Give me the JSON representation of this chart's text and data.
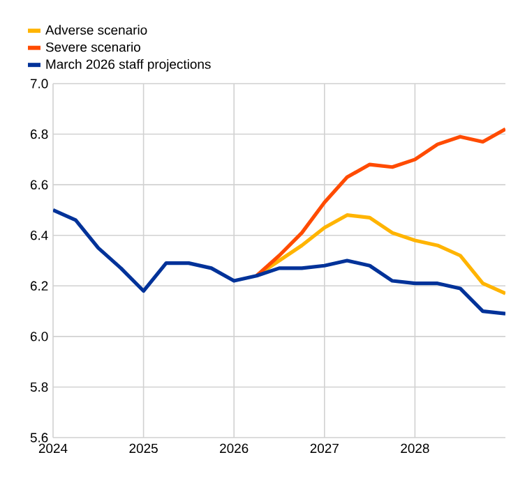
{
  "chart_data": {
    "type": "line",
    "legend": "top left",
    "grid": true,
    "xlim": [
      2024,
      2029
    ],
    "xticks": [
      2024,
      2025,
      2026,
      2027,
      2028
    ],
    "ylim": [
      5.6,
      7.0
    ],
    "yticks": [
      {
        "value": 5.6,
        "label": "5.6"
      },
      {
        "value": 5.8,
        "label": "5.8"
      },
      {
        "value": 6.0,
        "label": "6.0"
      },
      {
        "value": 6.2,
        "label": "6.2"
      },
      {
        "value": 6.4,
        "label": "6.4"
      },
      {
        "value": 6.6,
        "label": "6.6"
      },
      {
        "value": 6.8,
        "label": "6.8"
      },
      {
        "value": 7.0,
        "label": "7.0"
      }
    ],
    "series": [
      {
        "name": "Adverse scenario",
        "color": "#ffb400",
        "x": [
          2026.25,
          2026.5,
          2026.75,
          2027,
          2027.25,
          2027.5,
          2027.75,
          2028,
          2028.25,
          2028.5,
          2028.75,
          2029
        ],
        "values": [
          6.24,
          6.3,
          6.36,
          6.43,
          6.48,
          6.47,
          6.41,
          6.38,
          6.36,
          6.32,
          6.21,
          6.17
        ]
      },
      {
        "name": "Severe scenario",
        "color": "#ff4b00",
        "x": [
          2026.25,
          2026.5,
          2026.75,
          2027,
          2027.25,
          2027.5,
          2027.75,
          2028,
          2028.25,
          2028.5,
          2028.75,
          2029
        ],
        "values": [
          6.24,
          6.32,
          6.41,
          6.53,
          6.63,
          6.68,
          6.67,
          6.7,
          6.76,
          6.79,
          6.77,
          6.82
        ]
      },
      {
        "name": "March 2026 staff projections",
        "color": "#003299",
        "x": [
          2024,
          2024.25,
          2024.5,
          2024.75,
          2025,
          2025.25,
          2025.5,
          2025.75,
          2026,
          2026.25,
          2026.5,
          2026.75,
          2027,
          2027.25,
          2027.5,
          2027.75,
          2028,
          2028.25,
          2028.5,
          2028.75,
          2029
        ],
        "values": [
          6.5,
          6.46,
          6.35,
          6.27,
          6.18,
          6.29,
          6.29,
          6.27,
          6.22,
          6.24,
          6.27,
          6.27,
          6.28,
          6.3,
          6.28,
          6.22,
          6.21,
          6.21,
          6.19,
          6.1,
          6.09
        ]
      }
    ]
  }
}
